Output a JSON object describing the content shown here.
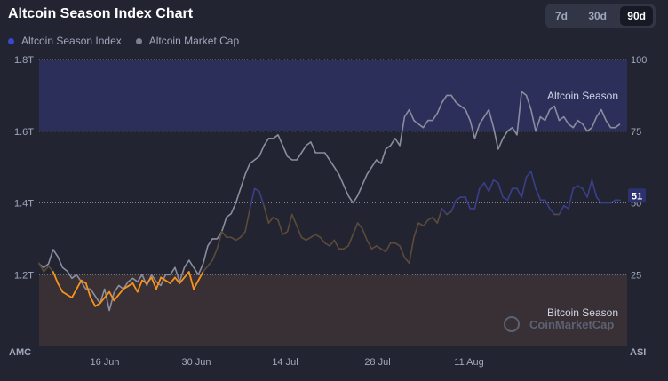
{
  "header": {
    "title": "Altcoin Season Index Chart",
    "ranges": [
      "7d",
      "30d",
      "90d"
    ],
    "active_range": "90d"
  },
  "legend": [
    {
      "label": "Altcoin Season Index",
      "color": "#3b47cf"
    },
    {
      "label": "Altcoin Market Cap",
      "color": "#7d8093"
    }
  ],
  "colors": {
    "index_default": "#3b3f8a",
    "index_bitcoin": "#f7931a",
    "index_neutral": "#5e4a38",
    "market_cap": "#8a8d9e",
    "altcoin_zone": "#2f3161",
    "bitcoin_zone": "#3b3235"
  },
  "watermark": "CoinMarketCap",
  "chart_data": {
    "type": "line",
    "x_ticks": [
      "16 Jun",
      "30 Jun",
      "14 Jul",
      "28 Jul",
      "11 Aug"
    ],
    "left_axis": {
      "label": "AMC",
      "ticks": [
        "1.8T",
        "1.6T",
        "1.4T",
        "1.2T"
      ],
      "range": [
        1.0,
        1.8
      ]
    },
    "right_axis": {
      "label": "ASI",
      "ticks": [
        "100",
        "75",
        "50",
        "25"
      ],
      "range": [
        0,
        100
      ]
    },
    "zones": [
      {
        "label": "Altcoin Season",
        "from": 75,
        "to": 100
      },
      {
        "label": "Bitcoin Season",
        "from": 0,
        "to": 25
      }
    ],
    "current_index_label": "51",
    "series": [
      {
        "name": "Altcoin Season Index",
        "axis": "right",
        "values": [
          29,
          26,
          28,
          26,
          22,
          19,
          18,
          17,
          20,
          23,
          22,
          17,
          14,
          15,
          17,
          19,
          16,
          18,
          20,
          21,
          22,
          19,
          23,
          22,
          24,
          20,
          24,
          23,
          22,
          24,
          22,
          24,
          26,
          20,
          23,
          26,
          28,
          30,
          34,
          40,
          38,
          38,
          37,
          38,
          40,
          48,
          55,
          54,
          49,
          43,
          45,
          44,
          39,
          40,
          46,
          42,
          38,
          37,
          38,
          39,
          38,
          36,
          35,
          37,
          34,
          34,
          35,
          39,
          43,
          41,
          37,
          34,
          35,
          34,
          33,
          36,
          36,
          35,
          31,
          29,
          38,
          43,
          42,
          44,
          45,
          43,
          48,
          46,
          47,
          51,
          52,
          52,
          48,
          48,
          55,
          57,
          54,
          58,
          57,
          52,
          51,
          55,
          55,
          52,
          59,
          61,
          55,
          51,
          51,
          48,
          46,
          46,
          49,
          48,
          55,
          56,
          55,
          52,
          58,
          52,
          50,
          50,
          50,
          51,
          51
        ]
      },
      {
        "name": "Altcoin Market Cap",
        "axis": "left",
        "values": [
          1.23,
          1.22,
          1.23,
          1.27,
          1.25,
          1.22,
          1.21,
          1.19,
          1.2,
          1.18,
          1.16,
          1.16,
          1.14,
          1.12,
          1.16,
          1.1,
          1.15,
          1.17,
          1.16,
          1.18,
          1.19,
          1.18,
          1.2,
          1.17,
          1.2,
          1.18,
          1.17,
          1.2,
          1.2,
          1.22,
          1.18,
          1.22,
          1.24,
          1.22,
          1.2,
          1.23,
          1.28,
          1.3,
          1.3,
          1.32,
          1.36,
          1.37,
          1.4,
          1.44,
          1.48,
          1.51,
          1.52,
          1.53,
          1.56,
          1.58,
          1.58,
          1.59,
          1.56,
          1.53,
          1.52,
          1.52,
          1.54,
          1.56,
          1.57,
          1.54,
          1.54,
          1.54,
          1.52,
          1.5,
          1.48,
          1.45,
          1.42,
          1.4,
          1.42,
          1.45,
          1.48,
          1.5,
          1.52,
          1.51,
          1.55,
          1.56,
          1.58,
          1.56,
          1.64,
          1.66,
          1.63,
          1.62,
          1.61,
          1.63,
          1.63,
          1.65,
          1.68,
          1.7,
          1.7,
          1.68,
          1.67,
          1.66,
          1.63,
          1.58,
          1.62,
          1.64,
          1.66,
          1.61,
          1.55,
          1.58,
          1.6,
          1.61,
          1.59,
          1.71,
          1.7,
          1.66,
          1.6,
          1.64,
          1.63,
          1.66,
          1.67,
          1.63,
          1.64,
          1.62,
          1.61,
          1.63,
          1.62,
          1.6,
          1.61,
          1.64,
          1.66,
          1.63,
          1.61,
          1.61,
          1.62
        ]
      }
    ]
  }
}
